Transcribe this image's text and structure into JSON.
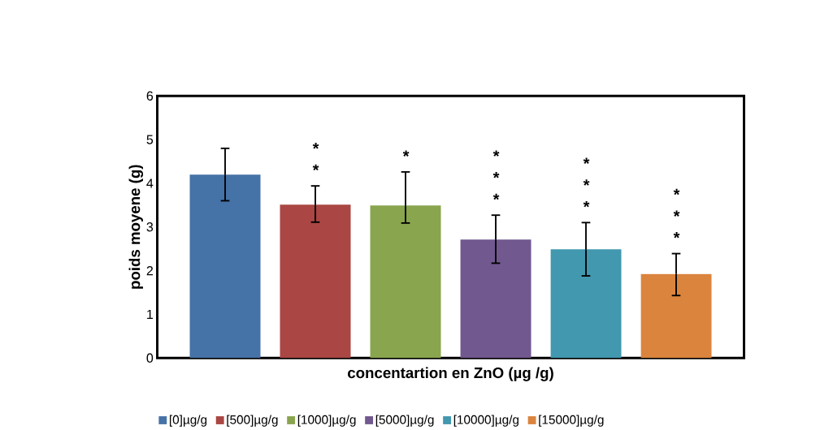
{
  "chart_data": {
    "type": "bar",
    "xlabel": "concentartion en ZnO (µg /g)",
    "ylabel": "poids moyene (g)",
    "categories": [
      null
    ],
    "series": [
      {
        "name": "[0]µg/g",
        "color": "#4572a7",
        "values": [
          4.2
        ],
        "errors": [
          [
            3.6,
            4.8
          ]
        ]
      },
      {
        "name": "[500]µg/g",
        "color": "#aa4643",
        "values": [
          3.51
        ],
        "errors": [
          [
            3.11,
            3.94
          ]
        ]
      },
      {
        "name": "[1000]µg/g",
        "color": "#89a54e",
        "values": [
          3.49
        ],
        "errors": [
          [
            3.09,
            4.26
          ]
        ]
      },
      {
        "name": "[5000]µg/g",
        "color": "#71588f",
        "values": [
          2.71
        ],
        "errors": [
          [
            2.17,
            3.27
          ]
        ]
      },
      {
        "name": "[10000]µg/g",
        "color": "#4198af",
        "values": [
          2.49
        ],
        "errors": [
          [
            1.88,
            3.1
          ]
        ]
      },
      {
        "name": "[15000]µg/g",
        "color": "#db843d",
        "values": [
          1.92
        ],
        "errors": [
          [
            1.43,
            2.39
          ]
        ]
      }
    ],
    "annotations": [
      "* *",
      "*",
      "* * *",
      "* * *",
      "* * *"
    ],
    "ylim": [
      0,
      6
    ],
    "yticks": [
      0,
      1,
      2,
      3,
      4,
      5,
      6
    ],
    "grid": false,
    "legend": "bottom"
  }
}
